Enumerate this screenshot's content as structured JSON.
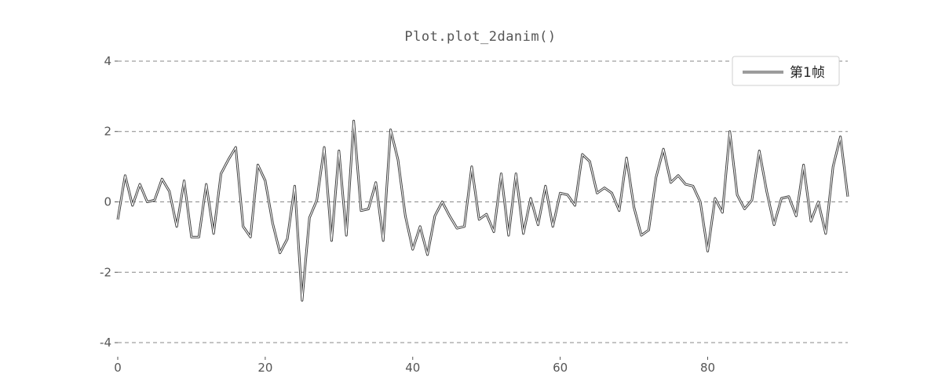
{
  "chart_data": {
    "type": "line",
    "title": "Plot.plot_2danim()",
    "xlabel": "",
    "ylabel": "",
    "xlim": [
      0,
      99
    ],
    "ylim": [
      -4.4,
      4.4
    ],
    "xticks": [
      0,
      20,
      40,
      60,
      80
    ],
    "yticks": [
      -4,
      -2,
      0,
      2,
      4
    ],
    "grid": "horizontal-dashed",
    "legend_position": "top-right",
    "series": [
      {
        "name": "第1帧",
        "color": "#3a3a3a",
        "x": [
          0,
          1,
          2,
          3,
          4,
          5,
          6,
          7,
          8,
          9,
          10,
          11,
          12,
          13,
          14,
          15,
          16,
          17,
          18,
          19,
          20,
          21,
          22,
          23,
          24,
          25,
          26,
          27,
          28,
          29,
          30,
          31,
          32,
          33,
          34,
          35,
          36,
          37,
          38,
          39,
          40,
          41,
          42,
          43,
          44,
          45,
          46,
          47,
          48,
          49,
          50,
          51,
          52,
          53,
          54,
          55,
          56,
          57,
          58,
          59,
          60,
          61,
          62,
          63,
          64,
          65,
          66,
          67,
          68,
          69,
          70,
          71,
          72,
          73,
          74,
          75,
          76,
          77,
          78,
          79,
          80,
          81,
          82,
          83,
          84,
          85,
          86,
          87,
          88,
          89,
          90,
          91,
          92,
          93,
          94,
          95,
          96,
          97,
          98,
          99
        ],
        "values": [
          -0.5,
          0.75,
          -0.1,
          0.5,
          0.0,
          0.05,
          0.65,
          0.3,
          -0.7,
          0.6,
          -1.0,
          -1.0,
          0.5,
          -0.9,
          0.8,
          1.2,
          1.55,
          -0.7,
          -1.0,
          1.05,
          0.6,
          -0.6,
          -1.45,
          -1.05,
          0.45,
          -2.8,
          -0.45,
          0.05,
          1.55,
          -1.1,
          1.45,
          -0.95,
          2.3,
          -0.25,
          -0.2,
          0.55,
          -1.1,
          2.05,
          1.2,
          -0.4,
          -1.35,
          -0.7,
          -1.5,
          -0.4,
          0.0,
          -0.4,
          -0.75,
          -0.7,
          1.0,
          -0.5,
          -0.35,
          -0.85,
          0.8,
          -0.95,
          0.8,
          -0.9,
          0.1,
          -0.65,
          0.45,
          -0.7,
          0.25,
          0.2,
          -0.1,
          1.35,
          1.15,
          0.25,
          0.4,
          0.25,
          -0.25,
          1.25,
          -0.15,
          -0.95,
          -0.8,
          0.7,
          1.5,
          0.55,
          0.75,
          0.5,
          0.45,
          0.0,
          -1.4,
          0.1,
          -0.3,
          2.0,
          0.2,
          -0.2,
          0.05,
          1.45,
          0.3,
          -0.65,
          0.1,
          0.15,
          -0.4,
          1.05,
          -0.55,
          0.0,
          -0.9,
          1.0,
          1.85,
          0.15
        ]
      }
    ]
  }
}
